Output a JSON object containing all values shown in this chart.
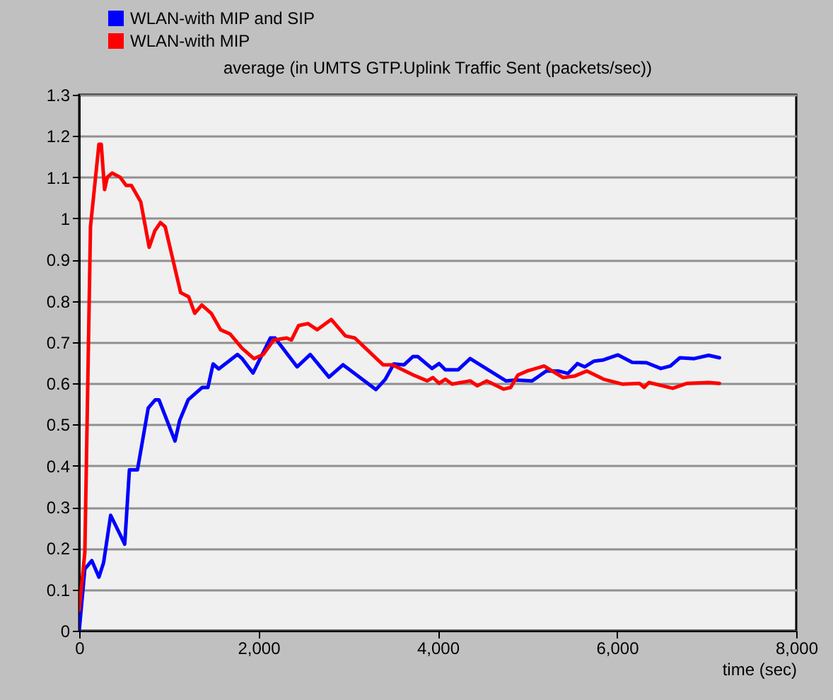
{
  "chart_data": {
    "type": "line",
    "title": "average (in UMTS GTP.Uplink Traffic Sent (packets/sec))",
    "xlabel": "time (sec)",
    "xlim": [
      0,
      8000
    ],
    "xticks": [
      0,
      {
        "value": 2000,
        "label": "2,000"
      },
      {
        "value": 4000,
        "label": "4,000"
      },
      {
        "value": 6000,
        "label": "6,000"
      },
      {
        "value": 8000,
        "label": "8,000"
      }
    ],
    "ylim": [
      0,
      1.3
    ],
    "yticks": [
      0,
      0.1,
      0.2,
      0.3,
      0.4,
      0.5,
      0.6,
      0.7,
      0.8,
      0.9,
      1,
      1.1,
      1.2,
      1.3
    ],
    "grid": "y",
    "legend": "top left",
    "line_style": "solid",
    "series": [
      {
        "name": "WLAN-with MIP and SIP",
        "color": "#0000ff",
        "x": [
          0,
          63,
          141,
          220,
          272,
          351,
          508,
          560,
          650,
          770,
          849,
          890,
          1069,
          1121,
          1216,
          1373,
          1436,
          1494,
          1557,
          1766,
          1818,
          1939,
          2133,
          2185,
          2431,
          2578,
          2787,
          2944,
          3311,
          3416,
          3510,
          3625,
          3723,
          3777,
          3936,
          4016,
          4085,
          4229,
          4362,
          4761,
          4867,
          5053,
          5213,
          5346,
          5452,
          5559,
          5639,
          5745,
          5851,
          6011,
          6170,
          6330,
          6489,
          6596,
          6702,
          6862,
          7022,
          7144
        ],
        "values": [
          0,
          0.15,
          0.17,
          0.13,
          0.165,
          0.28,
          0.21,
          0.39,
          0.39,
          0.54,
          0.56,
          0.56,
          0.46,
          0.51,
          0.56,
          0.59,
          0.59,
          0.647,
          0.635,
          0.67,
          0.66,
          0.625,
          0.71,
          0.71,
          0.64,
          0.67,
          0.615,
          0.645,
          0.585,
          0.61,
          0.647,
          0.645,
          0.665,
          0.665,
          0.636,
          0.648,
          0.633,
          0.633,
          0.66,
          0.606,
          0.608,
          0.606,
          0.63,
          0.63,
          0.624,
          0.648,
          0.64,
          0.654,
          0.657,
          0.669,
          0.651,
          0.65,
          0.636,
          0.642,
          0.662,
          0.66,
          0.668,
          0.662
        ]
      },
      {
        "name": "WLAN-with MIP",
        "color": "#ff0000",
        "x": [
          0,
          63,
          126,
          220,
          246,
          283,
          314,
          367,
          456,
          524,
          582,
          687,
          781,
          844,
          907,
          959,
          1132,
          1221,
          1289,
          1368,
          1473,
          1577,
          1682,
          1818,
          1949,
          2054,
          2169,
          2315,
          2368,
          2447,
          2552,
          2656,
          2813,
          2971,
          3075,
          3390,
          3495,
          3730,
          3883,
          3947,
          4016,
          4085,
          4160,
          4362,
          4442,
          4548,
          4734,
          4814,
          4894,
          5000,
          5186,
          5399,
          5532,
          5665,
          5851,
          6064,
          6250,
          6303,
          6356,
          6622,
          6782,
          7022,
          7144
        ],
        "values": [
          0.05,
          0.19,
          0.98,
          1.18,
          1.18,
          1.07,
          1.1,
          1.11,
          1.1,
          1.08,
          1.08,
          1.04,
          0.93,
          0.97,
          0.99,
          0.98,
          0.82,
          0.81,
          0.77,
          0.79,
          0.77,
          0.73,
          0.72,
          0.685,
          0.66,
          0.67,
          0.705,
          0.71,
          0.705,
          0.74,
          0.745,
          0.73,
          0.755,
          0.715,
          0.71,
          0.645,
          0.645,
          0.62,
          0.606,
          0.614,
          0.6,
          0.61,
          0.598,
          0.606,
          0.594,
          0.606,
          0.586,
          0.59,
          0.62,
          0.63,
          0.642,
          0.614,
          0.618,
          0.63,
          0.61,
          0.598,
          0.6,
          0.59,
          0.602,
          0.588,
          0.6,
          0.602,
          0.6
        ]
      }
    ]
  }
}
